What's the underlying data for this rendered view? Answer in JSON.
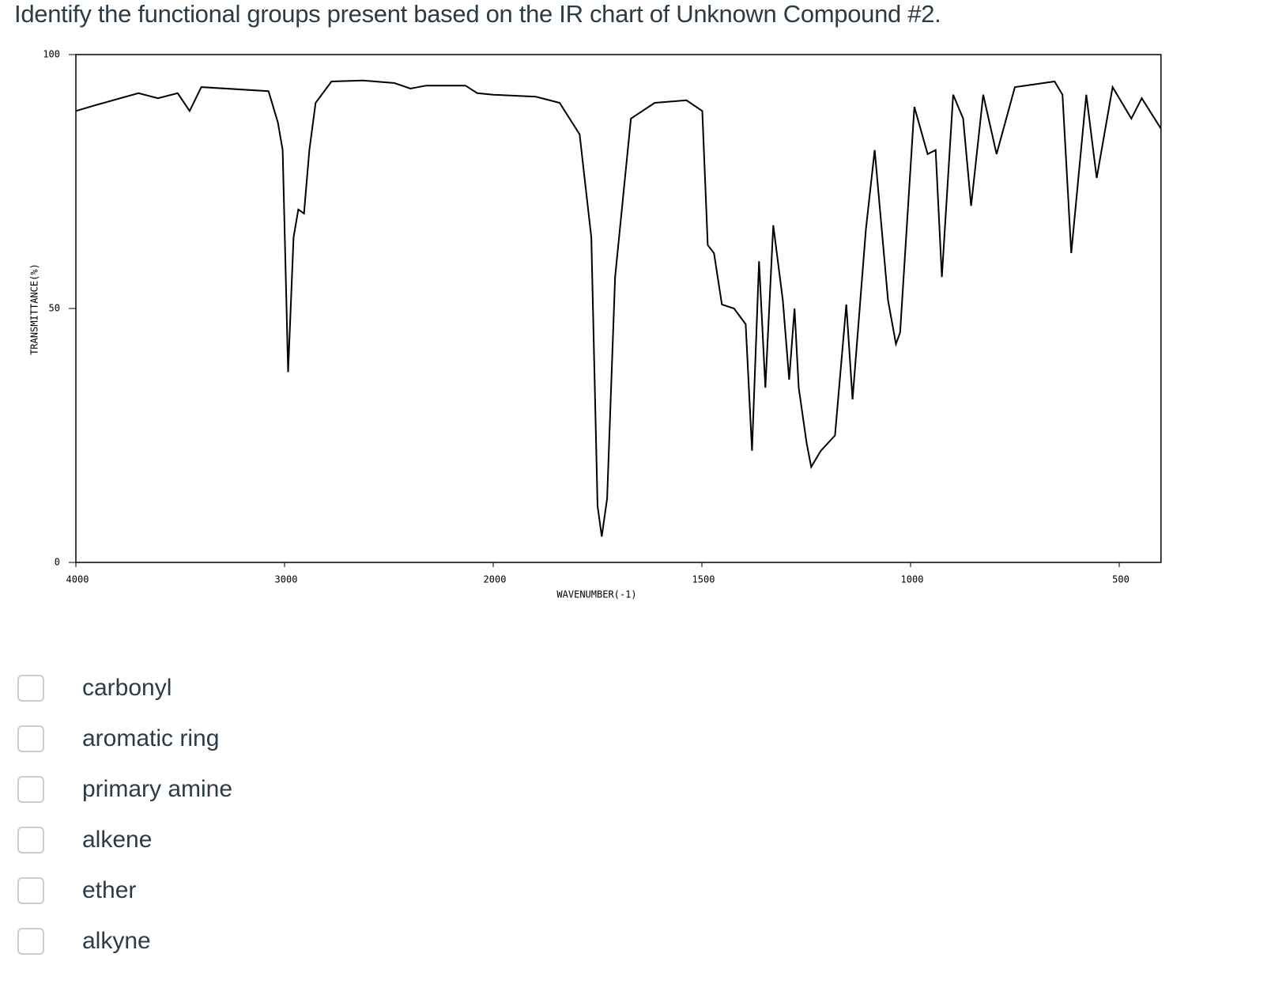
{
  "question": "Identify the functional groups present based on the IR chart of Unknown Compound #2.",
  "chart_data": {
    "type": "line",
    "xlabel": "WAVENUMBER(-1)",
    "ylabel": "TRANSMITTANCE(%)",
    "xlim": [
      4000,
      400
    ],
    "xticks": [
      4000,
      3000,
      2000,
      1500,
      1000,
      500
    ],
    "ylim": [
      0,
      100
    ],
    "yticks": [
      0,
      50,
      100
    ],
    "color": "#000000",
    "x": [
      4000,
      3909,
      3700,
      3607,
      3512,
      3455,
      3399,
      3077,
      3032,
      3009,
      2983,
      2957,
      2934,
      2907,
      2881,
      2851,
      2775,
      2624,
      2473,
      2397,
      2321,
      2133,
      2076,
      2000,
      1898,
      1841,
      1793,
      1765,
      1750,
      1740,
      1727,
      1708,
      1670,
      1613,
      1537,
      1499,
      1486,
      1471,
      1452,
      1423,
      1395,
      1380,
      1363,
      1348,
      1329,
      1306,
      1291,
      1278,
      1268,
      1249,
      1238,
      1215,
      1181,
      1154,
      1139,
      1107,
      1086,
      1054,
      1035,
      1025,
      991,
      959,
      940,
      925,
      898,
      874,
      855,
      826,
      794,
      750,
      655,
      636,
      615,
      579,
      554,
      516,
      471,
      446,
      400
    ],
    "values": [
      88.9,
      90,
      92.4,
      91.4,
      92.4,
      88.9,
      93.6,
      92.8,
      86.6,
      81.2,
      37.5,
      64,
      69.5,
      68.7,
      81.2,
      90.5,
      94.7,
      94.9,
      94.4,
      93.3,
      93.9,
      93.9,
      92.4,
      92.1,
      91.7,
      90.5,
      84.3,
      64,
      11.1,
      5.1,
      12.6,
      56.2,
      87.4,
      90.5,
      91,
      88.9,
      62.5,
      60.9,
      50.8,
      50,
      46.9,
      22,
      59.3,
      34.4,
      66.4,
      51.6,
      36,
      50,
      34.4,
      23.5,
      18.8,
      22,
      25,
      50.8,
      32.1,
      65.6,
      81.2,
      51.6,
      43,
      45.3,
      89.7,
      80.4,
      81.2,
      56.2,
      92.1,
      87.4,
      70.2,
      92.1,
      80.4,
      93.6,
      94.7,
      92.1,
      60.9,
      92.1,
      75.7,
      93.6,
      87.4,
      91.4,
      85.4
    ]
  },
  "options": [
    "carbonyl",
    "aromatic ring",
    "primary amine",
    "alkene",
    "ether",
    "alkyne"
  ]
}
